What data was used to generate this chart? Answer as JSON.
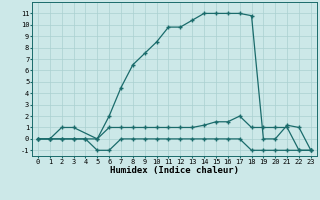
{
  "line1_x": [
    0,
    1,
    2,
    3,
    5,
    6,
    7,
    8,
    9,
    10,
    11,
    12,
    13,
    14,
    15,
    16,
    17,
    18,
    19,
    20,
    21,
    22,
    23
  ],
  "line1_y": [
    0,
    0,
    1,
    1,
    0,
    2,
    4.5,
    6.5,
    7.5,
    8.5,
    9.8,
    9.8,
    10.4,
    11,
    11,
    11,
    11,
    10.8,
    0,
    0,
    1.2,
    1,
    -1
  ],
  "line2_x": [
    0,
    1,
    2,
    3,
    4,
    5,
    6,
    7,
    8,
    9,
    10,
    11,
    12,
    13,
    14,
    15,
    16,
    17,
    18,
    19,
    20,
    21,
    22,
    23
  ],
  "line2_y": [
    0,
    0,
    0,
    0,
    0,
    0,
    1,
    1,
    1,
    1,
    1,
    1,
    1,
    1,
    1.2,
    1.5,
    1.5,
    2,
    1,
    1,
    1,
    1,
    -1,
    -1
  ],
  "line3_x": [
    0,
    1,
    2,
    3,
    4,
    5,
    6,
    7,
    8,
    9,
    10,
    11,
    12,
    13,
    14,
    15,
    16,
    17,
    18,
    19,
    20,
    21,
    22,
    23
  ],
  "line3_y": [
    0,
    0,
    0,
    0,
    0,
    -1,
    -1,
    0,
    0,
    0,
    0,
    0,
    0,
    0,
    0,
    0,
    0,
    0,
    -1,
    -1,
    -1,
    -1,
    -1,
    -1
  ],
  "line_color": "#1a6b6b",
  "bg_color": "#cce8e8",
  "grid_color": "#aad0d0",
  "xlabel": "Humidex (Indice chaleur)",
  "xlim": [
    -0.5,
    23.5
  ],
  "ylim": [
    -1.5,
    12.0
  ],
  "xticks": [
    0,
    1,
    2,
    3,
    4,
    5,
    6,
    7,
    8,
    9,
    10,
    11,
    12,
    13,
    14,
    15,
    16,
    17,
    18,
    19,
    20,
    21,
    22,
    23
  ],
  "yticks": [
    -1,
    0,
    1,
    2,
    3,
    4,
    5,
    6,
    7,
    8,
    9,
    10,
    11
  ],
  "marker": "+",
  "markersize": 3,
  "linewidth": 0.9,
  "tick_fontsize": 5.0,
  "xlabel_fontsize": 6.5
}
